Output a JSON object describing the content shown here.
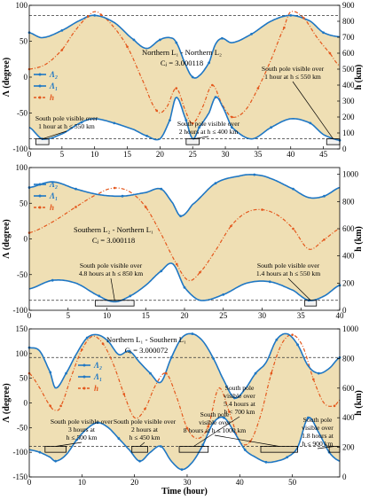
{
  "colors": {
    "lambda": "#1f77c4",
    "h": "#e4571c",
    "fill": "#efdfb4",
    "box": "#000000"
  },
  "chart_data": [
    {
      "type": "line",
      "panel": "top",
      "title": [
        "Northern L₁ - Northern L₂",
        "Cⱼ = 3.000118"
      ],
      "xlabel": "",
      "ylabel": "Λ (degree)",
      "y2label": "h (km)",
      "xlim": [
        0,
        47.5
      ],
      "ylim": [
        -100,
        100
      ],
      "y2lim": [
        0,
        900
      ],
      "xticks": [
        0,
        5,
        10,
        15,
        20,
        25,
        30,
        35,
        40,
        45
      ],
      "yticks": [
        -100,
        -50,
        0,
        50,
        100
      ],
      "y2ticks": [
        0,
        100,
        200,
        300,
        400,
        500,
        600,
        700,
        800,
        900
      ],
      "legend": [
        "Λ₂",
        "Λ₁",
        "h"
      ],
      "legend_position": "left",
      "refline_y": [
        86,
        -86
      ],
      "series": [
        {
          "name": "Λ₂",
          "axis": "left",
          "x": [
            0,
            2,
            5,
            8,
            10,
            13,
            16,
            18,
            20,
            21.5,
            22.5,
            24,
            25,
            26,
            27.5,
            28.5,
            29.5,
            31,
            34,
            37,
            40,
            43,
            45,
            47.5
          ],
          "y": [
            62,
            55,
            65,
            80,
            86,
            76,
            52,
            40,
            52,
            55,
            48,
            16,
            0,
            2,
            20,
            46,
            54,
            48,
            60,
            78,
            86,
            78,
            62,
            56
          ]
        },
        {
          "name": "Λ₁",
          "axis": "left",
          "x": [
            0,
            2,
            5,
            8,
            10,
            13,
            16,
            18,
            20,
            21.5,
            22.5,
            24,
            25,
            26,
            27.5,
            28.5,
            29.5,
            31,
            34,
            37,
            40,
            43,
            45,
            47.5
          ],
          "y": [
            -70,
            -86,
            -79,
            -63,
            -58,
            -64,
            -73,
            -82,
            -86,
            -60,
            -28,
            -60,
            -86,
            -70,
            -50,
            -28,
            -40,
            -70,
            -86,
            -70,
            -58,
            -64,
            -80,
            -88
          ]
        },
        {
          "name": "h",
          "axis": "right",
          "x": [
            0,
            2.5,
            5,
            7,
            9,
            10,
            11,
            13,
            15,
            17,
            19.5,
            21,
            22.5,
            24,
            25,
            26.5,
            28,
            29.5,
            31,
            33,
            35,
            37,
            39,
            40,
            42,
            44,
            46,
            47.5
          ],
          "y": [
            500,
            530,
            620,
            740,
            830,
            860,
            840,
            760,
            640,
            460,
            240,
            260,
            380,
            230,
            160,
            260,
            400,
            280,
            200,
            240,
            380,
            560,
            760,
            860,
            820,
            700,
            600,
            520
          ]
        }
      ],
      "annotations": [
        {
          "lines": [
            "South pole visible over",
            "1 hour at h ≤ 550 km"
          ],
          "x": 2
        },
        {
          "lines": [
            "South pole visible over",
            "2 hours at h ≤ 400 km"
          ],
          "x": 25
        },
        {
          "lines": [
            "South pole visible over",
            "1 hour at h ≤ 550 km"
          ],
          "x": 46.5
        }
      ],
      "boxes": [
        [
          1,
          3,
          -94,
          -86
        ],
        [
          24,
          26,
          -94,
          -86
        ],
        [
          45.5,
          47.5,
          -94,
          -86
        ]
      ]
    },
    {
      "type": "line",
      "panel": "middle",
      "title": [
        "Southern L₂ - Northern L₁",
        "Cⱼ = 3.000118"
      ],
      "xlabel": "",
      "ylabel": "Λ (degree)",
      "y2label": "h (km)",
      "xlim": [
        0,
        40
      ],
      "ylim": [
        -100,
        100
      ],
      "y2lim": [
        0,
        1050
      ],
      "xticks": [
        0,
        5,
        10,
        15,
        20,
        25,
        30,
        35,
        40
      ],
      "yticks": [
        -100,
        -50,
        0,
        50,
        100
      ],
      "y2ticks": [
        0,
        200,
        400,
        600,
        800,
        1000
      ],
      "legend": [
        "Λ₂",
        "Λ₁",
        "h"
      ],
      "legend_position": "top-left",
      "refline_y": [
        -86
      ],
      "series": [
        {
          "name": "Λ₂",
          "axis": "left",
          "x": [
            0,
            3,
            6,
            9,
            12,
            15,
            17,
            18.5,
            19.5,
            21,
            24,
            27,
            29,
            31,
            34,
            36,
            38,
            40
          ],
          "y": [
            72,
            80,
            70,
            62,
            60,
            65,
            70,
            50,
            32,
            48,
            78,
            88,
            90,
            85,
            70,
            58,
            60,
            72
          ]
        },
        {
          "name": "Λ₁",
          "axis": "left",
          "x": [
            0,
            3,
            6,
            9,
            11,
            13,
            15,
            17,
            18.5,
            20,
            22,
            25,
            28,
            31,
            34,
            36,
            38,
            40
          ],
          "y": [
            -70,
            -58,
            -62,
            -80,
            -88,
            -80,
            -65,
            -45,
            -35,
            -68,
            -86,
            -78,
            -62,
            -60,
            -72,
            -86,
            -80,
            -65
          ]
        },
        {
          "name": "h",
          "axis": "right",
          "x": [
            0,
            3,
            6,
            9,
            11,
            13,
            15,
            17,
            19,
            20.5,
            22,
            24,
            26,
            28,
            30,
            32,
            34,
            36,
            38,
            40
          ],
          "y": [
            570,
            650,
            760,
            860,
            900,
            870,
            760,
            560,
            340,
            220,
            280,
            440,
            620,
            720,
            740,
            700,
            600,
            450,
            520,
            600
          ]
        }
      ],
      "annotations": [
        {
          "lines": [
            "South pole visible over",
            "4.8 hours at h ≤ 850 km"
          ],
          "x": 11
        },
        {
          "lines": [
            "South pole visible over",
            "1.4 hours at h ≤ 550 km"
          ],
          "x": 36
        }
      ],
      "boxes": [
        [
          8.5,
          13.5,
          -94,
          -86
        ],
        [
          35.5,
          37,
          -94,
          -86
        ]
      ]
    },
    {
      "type": "line",
      "panel": "bottom",
      "title": [
        "Northern L₁ - Southern L₁",
        "Cⱼ = 3.000072"
      ],
      "xlabel": "Time (hour)",
      "ylabel": "Λ (degree)",
      "y2label": "h (km)",
      "xlim": [
        0,
        59
      ],
      "ylim": [
        -150,
        150
      ],
      "y2lim": [
        0,
        1000
      ],
      "xticks": [
        0,
        10,
        20,
        30,
        40,
        50
      ],
      "yticks": [
        -150,
        -100,
        -50,
        0,
        50,
        100,
        150
      ],
      "y2ticks": [
        0,
        200,
        400,
        600,
        800,
        1000
      ],
      "legend": [
        "Λ₂",
        "Λ₁",
        "h"
      ],
      "legend_position": "top-left",
      "refline_y": [
        92,
        -88
      ],
      "series": [
        {
          "name": "Λ₂",
          "axis": "left",
          "x": [
            0,
            2,
            4,
            5,
            7,
            9,
            11,
            13,
            15,
            17,
            19,
            21,
            23,
            25,
            27,
            29,
            31,
            33,
            35,
            37,
            39,
            41,
            43,
            45,
            47,
            49,
            51,
            53,
            55,
            57,
            59
          ],
          "y": [
            112,
            105,
            62,
            30,
            60,
            100,
            132,
            138,
            125,
            98,
            105,
            82,
            60,
            42,
            92,
            132,
            140,
            125,
            90,
            45,
            10,
            28,
            60,
            82,
            128,
            140,
            118,
            75,
            60,
            70,
            92
          ]
        },
        {
          "name": "Λ₁",
          "axis": "left",
          "x": [
            0,
            2,
            4,
            5,
            7,
            9,
            11,
            13,
            15,
            17,
            19,
            21,
            23,
            25,
            27,
            29,
            31,
            33,
            35,
            37,
            39,
            41,
            43,
            45,
            47,
            49,
            51,
            53,
            55,
            57,
            59
          ],
          "y": [
            -95,
            -100,
            -110,
            -118,
            -105,
            -75,
            -52,
            -40,
            -50,
            -72,
            -95,
            -118,
            -100,
            -88,
            -118,
            -135,
            -120,
            -85,
            -40,
            -30,
            -60,
            -95,
            -110,
            -120,
            -118,
            -110,
            -90,
            -30,
            -60,
            -100,
            -118
          ]
        },
        {
          "name": "h",
          "axis": "right",
          "x": [
            0,
            2,
            4,
            5,
            6,
            8,
            10,
            12,
            14,
            16,
            18,
            20,
            22,
            24,
            26,
            28,
            30,
            32,
            34,
            36,
            38,
            40,
            42,
            44,
            46,
            48,
            50,
            52,
            54,
            56,
            58,
            59
          ],
          "y": [
            700,
            600,
            480,
            450,
            480,
            680,
            860,
            950,
            900,
            760,
            560,
            400,
            460,
            620,
            700,
            540,
            330,
            260,
            340,
            600,
            440,
            240,
            240,
            420,
            700,
            900,
            960,
            880,
            660,
            500,
            480,
            520
          ]
        }
      ],
      "annotations": [
        {
          "lines": [
            "South pole visible over",
            "3 hours at",
            "h ≤ 500 km"
          ],
          "x": 5
        },
        {
          "lines": [
            "South pole visible over",
            "2 hours at",
            "h ≤ 450 km"
          ],
          "x": 21
        },
        {
          "lines": [
            "South pole",
            "visible over",
            "5.4 hours at",
            "h < 700 km"
          ],
          "x": 36
        },
        {
          "lines": [
            "South pole",
            "visible over",
            "8 hours at h ≤ 1000 km"
          ],
          "x": 47
        },
        {
          "lines": [
            "South pole",
            "visible over",
            "1.8 hours at",
            "h ≤ 900 km"
          ],
          "x": 57
        }
      ],
      "boxes": [
        [
          3,
          7,
          -100,
          -88
        ],
        [
          19.5,
          22.5,
          -100,
          -88
        ],
        [
          28.5,
          34,
          -100,
          -88
        ],
        [
          44,
          51,
          -100,
          -88
        ],
        [
          57,
          59,
          -100,
          -88
        ]
      ]
    }
  ]
}
